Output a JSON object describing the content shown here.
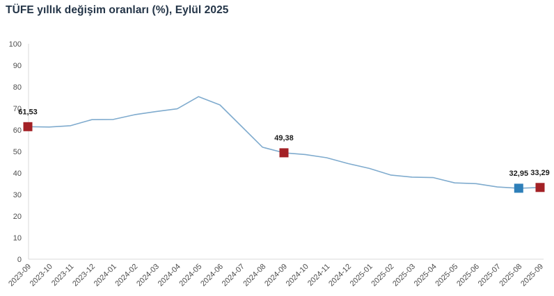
{
  "chart_data": {
    "type": "line",
    "title": "TÜFE yıllık değişim oranları (%), Eylül 2025",
    "xlabel": "",
    "ylabel": "",
    "grid": false,
    "legend": false,
    "ylim": [
      0,
      100
    ],
    "ytick_step": 10,
    "categories": [
      "2023-09",
      "2023-10",
      "2023-11",
      "2023-12",
      "2024-01",
      "2024-02",
      "2024-03",
      "2024-04",
      "2024-05",
      "2024-06",
      "2024-07",
      "2024-08",
      "2024-09",
      "2024-10",
      "2024-11",
      "2024-12",
      "2025-01",
      "2025-02",
      "2025-03",
      "2025-04",
      "2025-05",
      "2025-06",
      "2025-07",
      "2025-08",
      "2025-09"
    ],
    "values": [
      61.53,
      61.36,
      61.98,
      64.77,
      64.86,
      67.07,
      68.5,
      69.8,
      75.45,
      71.6,
      61.78,
      51.97,
      49.38,
      48.58,
      47.09,
      44.38,
      42.12,
      39.05,
      38.1,
      37.86,
      35.41,
      35.05,
      33.52,
      32.95,
      33.29
    ],
    "annotations": [
      {
        "index": 0,
        "category": "2023-09",
        "label": "61,53",
        "marker": "red"
      },
      {
        "index": 12,
        "category": "2024-09",
        "label": "49,38",
        "marker": "red"
      },
      {
        "index": 23,
        "category": "2025-08",
        "label": "32,95",
        "marker": "blue"
      },
      {
        "index": 24,
        "category": "2025-09",
        "label": "33,29",
        "marker": "red"
      }
    ],
    "colors": {
      "line": "#7fabce",
      "marker_red": "#a32126",
      "marker_blue": "#2e7fb9",
      "axis_line": "#d9d9d9",
      "tick_label": "#4d4d4d",
      "data_label": "#1a1a1a",
      "title": "#233447",
      "background": "#ffffff"
    }
  }
}
